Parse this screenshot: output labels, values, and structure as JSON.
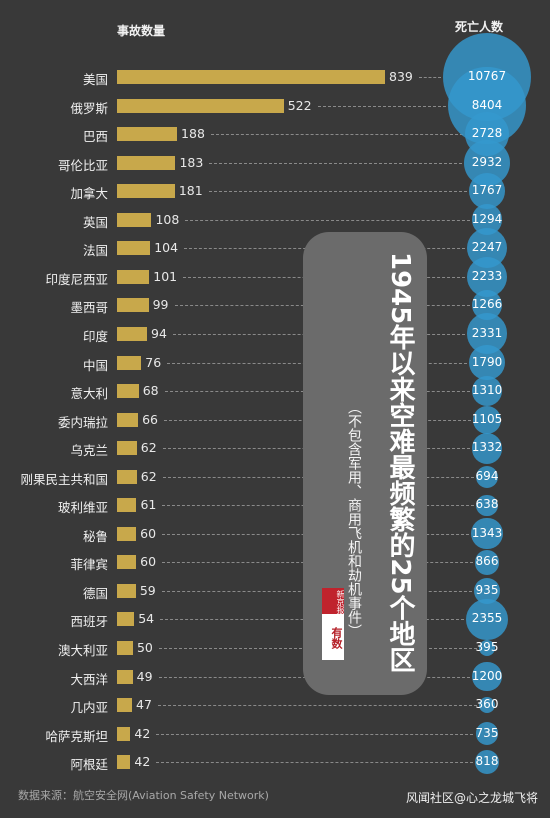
{
  "chart_data": {
    "type": "bar",
    "title": "1945年以来空难最频繁的25个地区",
    "subtitle": "（不包含军用、商用飞机和劫机事件）",
    "column_headers": {
      "accidents": "事故数量",
      "deaths": "死亡人数"
    },
    "categories": [
      "美国",
      "俄罗斯",
      "巴西",
      "哥伦比亚",
      "加拿大",
      "英国",
      "法国",
      "印度尼西亚",
      "墨西哥",
      "印度",
      "中国",
      "意大利",
      "委内瑞拉",
      "乌克兰",
      "刚果民主共和国",
      "玻利维亚",
      "秘鲁",
      "菲律宾",
      "德国",
      "西班牙",
      "澳大利亚",
      "大西洋",
      "几内亚",
      "哈萨克斯坦",
      "阿根廷"
    ],
    "series": [
      {
        "name": "事故数量",
        "values": [
          839,
          522,
          188,
          183,
          181,
          108,
          104,
          101,
          99,
          94,
          76,
          68,
          66,
          62,
          62,
          61,
          60,
          60,
          59,
          54,
          50,
          49,
          47,
          42,
          42
        ]
      },
      {
        "name": "死亡人数",
        "values": [
          10767,
          8404,
          2728,
          2932,
          1767,
          1294,
          2247,
          2233,
          1266,
          2331,
          1790,
          1310,
          1105,
          1332,
          694,
          638,
          1343,
          866,
          935,
          2355,
          395,
          1200,
          360,
          735,
          818
        ]
      }
    ],
    "colors": {
      "bar": "#c8a84b",
      "bubble": "#3498ce",
      "background": "#393939",
      "title_box": "#6b6b6b"
    }
  },
  "logo_text": "新京报 有数",
  "source": "数据来源：航空安全网(Aviation Safety Network)",
  "watermark": "风闻社区@心之龙城飞将"
}
